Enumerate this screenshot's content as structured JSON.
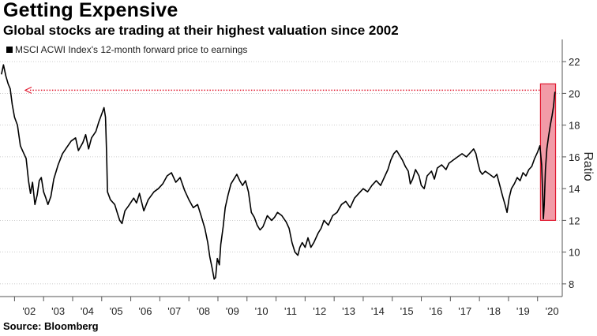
{
  "header": {
    "title": "Getting Expensive",
    "subtitle": "Global stocks are trading at their highest valuation since 2002"
  },
  "footer": {
    "source": "Source: Bloomberg"
  },
  "chart_data": {
    "type": "line",
    "title": "Getting Expensive",
    "subtitle": "Global stocks are trading at their highest valuation since 2002",
    "ylabel": "Ratio",
    "xlabel": "",
    "ylim": [
      7.2,
      23.2
    ],
    "xlim": [
      2001.5,
      2020.85
    ],
    "yticks": [
      8,
      10,
      12,
      14,
      16,
      18,
      20,
      22
    ],
    "xtick_labels": [
      "'02",
      "'03",
      "'04",
      "'05",
      "'06",
      "'07",
      "'08",
      "'09",
      "'10",
      "'11",
      "'12",
      "'13",
      "'14",
      "'15",
      "'16",
      "'17",
      "'18",
      "'19",
      "'20"
    ],
    "grid": "horizontal dotted",
    "legend_position": "top-left",
    "annotation": {
      "type": "highlight box and dotted arrow",
      "highlight_x": [
        2020.1,
        2020.62
      ],
      "highlight_y": [
        12,
        20.6
      ],
      "arrow_y": 20.2
    },
    "series": [
      {
        "name": "MSCI ACWI Index's 12-month forward price to earnings",
        "color": "#000000",
        "points": [
          [
            2001.55,
            21.2
          ],
          [
            2001.62,
            21.8
          ],
          [
            2001.7,
            21.1
          ],
          [
            2001.78,
            20.6
          ],
          [
            2001.85,
            20.3
          ],
          [
            2001.92,
            19.3
          ],
          [
            2002.0,
            18.5
          ],
          [
            2002.1,
            18.0
          ],
          [
            2002.2,
            16.7
          ],
          [
            2002.3,
            16.3
          ],
          [
            2002.4,
            15.9
          ],
          [
            2002.48,
            14.5
          ],
          [
            2002.55,
            13.7
          ],
          [
            2002.62,
            14.4
          ],
          [
            2002.7,
            13.0
          ],
          [
            2002.78,
            13.6
          ],
          [
            2002.85,
            14.5
          ],
          [
            2002.92,
            14.7
          ],
          [
            2003.0,
            13.8
          ],
          [
            2003.08,
            13.4
          ],
          [
            2003.15,
            13.0
          ],
          [
            2003.25,
            13.5
          ],
          [
            2003.35,
            14.6
          ],
          [
            2003.5,
            15.5
          ],
          [
            2003.65,
            16.2
          ],
          [
            2003.8,
            16.6
          ],
          [
            2003.95,
            17.0
          ],
          [
            2004.1,
            17.2
          ],
          [
            2004.2,
            16.4
          ],
          [
            2004.35,
            16.9
          ],
          [
            2004.45,
            17.4
          ],
          [
            2004.55,
            16.5
          ],
          [
            2004.65,
            17.2
          ],
          [
            2004.8,
            17.6
          ],
          [
            2004.9,
            18.2
          ],
          [
            2005.0,
            18.7
          ],
          [
            2005.08,
            19.1
          ],
          [
            2005.13,
            18.5
          ],
          [
            2005.17,
            16.2
          ],
          [
            2005.2,
            13.8
          ],
          [
            2005.3,
            13.3
          ],
          [
            2005.45,
            13.0
          ],
          [
            2005.55,
            12.4
          ],
          [
            2005.62,
            12.0
          ],
          [
            2005.7,
            11.8
          ],
          [
            2005.8,
            12.6
          ],
          [
            2005.92,
            12.9
          ],
          [
            2006.1,
            13.4
          ],
          [
            2006.2,
            13.1
          ],
          [
            2006.3,
            13.7
          ],
          [
            2006.45,
            12.6
          ],
          [
            2006.6,
            13.3
          ],
          [
            2006.8,
            13.8
          ],
          [
            2006.95,
            14.0
          ],
          [
            2007.1,
            14.3
          ],
          [
            2007.25,
            14.8
          ],
          [
            2007.4,
            15.0
          ],
          [
            2007.55,
            14.4
          ],
          [
            2007.7,
            14.7
          ],
          [
            2007.85,
            13.9
          ],
          [
            2008.0,
            13.3
          ],
          [
            2008.15,
            12.8
          ],
          [
            2008.3,
            13.0
          ],
          [
            2008.42,
            12.3
          ],
          [
            2008.55,
            11.5
          ],
          [
            2008.65,
            10.6
          ],
          [
            2008.72,
            9.7
          ],
          [
            2008.8,
            9.0
          ],
          [
            2008.87,
            8.3
          ],
          [
            2008.92,
            8.4
          ],
          [
            2008.98,
            9.6
          ],
          [
            2009.05,
            9.2
          ],
          [
            2009.1,
            10.5
          ],
          [
            2009.18,
            11.6
          ],
          [
            2009.25,
            12.8
          ],
          [
            2009.35,
            13.6
          ],
          [
            2009.45,
            14.3
          ],
          [
            2009.55,
            14.6
          ],
          [
            2009.65,
            14.9
          ],
          [
            2009.75,
            14.5
          ],
          [
            2009.85,
            14.2
          ],
          [
            2009.95,
            14.5
          ],
          [
            2010.05,
            13.8
          ],
          [
            2010.15,
            12.5
          ],
          [
            2010.25,
            12.2
          ],
          [
            2010.35,
            11.7
          ],
          [
            2010.45,
            11.4
          ],
          [
            2010.55,
            11.6
          ],
          [
            2010.7,
            12.3
          ],
          [
            2010.85,
            12.0
          ],
          [
            2010.95,
            12.2
          ],
          [
            2011.05,
            12.5
          ],
          [
            2011.2,
            12.3
          ],
          [
            2011.35,
            11.9
          ],
          [
            2011.45,
            11.5
          ],
          [
            2011.55,
            10.6
          ],
          [
            2011.65,
            10.0
          ],
          [
            2011.75,
            9.8
          ],
          [
            2011.82,
            10.3
          ],
          [
            2011.9,
            10.6
          ],
          [
            2012.0,
            10.3
          ],
          [
            2012.1,
            10.9
          ],
          [
            2012.2,
            10.3
          ],
          [
            2012.3,
            10.6
          ],
          [
            2012.45,
            11.2
          ],
          [
            2012.55,
            11.5
          ],
          [
            2012.65,
            12.0
          ],
          [
            2012.8,
            11.7
          ],
          [
            2012.95,
            12.3
          ],
          [
            2013.1,
            12.5
          ],
          [
            2013.25,
            13.0
          ],
          [
            2013.4,
            13.2
          ],
          [
            2013.55,
            12.8
          ],
          [
            2013.7,
            13.4
          ],
          [
            2013.85,
            13.7
          ],
          [
            2014.0,
            14.0
          ],
          [
            2014.15,
            13.8
          ],
          [
            2014.3,
            14.2
          ],
          [
            2014.45,
            14.5
          ],
          [
            2014.6,
            14.2
          ],
          [
            2014.75,
            14.8
          ],
          [
            2014.85,
            15.2
          ],
          [
            2014.95,
            15.8
          ],
          [
            2015.05,
            16.2
          ],
          [
            2015.15,
            16.4
          ],
          [
            2015.25,
            16.1
          ],
          [
            2015.35,
            15.8
          ],
          [
            2015.45,
            15.4
          ],
          [
            2015.55,
            15.1
          ],
          [
            2015.62,
            14.3
          ],
          [
            2015.7,
            14.6
          ],
          [
            2015.8,
            15.2
          ],
          [
            2015.92,
            14.8
          ],
          [
            2016.0,
            14.2
          ],
          [
            2016.1,
            14.0
          ],
          [
            2016.2,
            14.8
          ],
          [
            2016.35,
            15.1
          ],
          [
            2016.45,
            14.6
          ],
          [
            2016.55,
            15.3
          ],
          [
            2016.7,
            15.5
          ],
          [
            2016.85,
            15.2
          ],
          [
            2016.95,
            15.6
          ],
          [
            2017.1,
            15.8
          ],
          [
            2017.25,
            16.0
          ],
          [
            2017.4,
            16.2
          ],
          [
            2017.55,
            16.0
          ],
          [
            2017.7,
            16.3
          ],
          [
            2017.8,
            16.5
          ],
          [
            2017.88,
            16.2
          ],
          [
            2017.95,
            15.6
          ],
          [
            2018.02,
            15.1
          ],
          [
            2018.1,
            14.9
          ],
          [
            2018.2,
            15.1
          ],
          [
            2018.35,
            14.9
          ],
          [
            2018.5,
            14.7
          ],
          [
            2018.6,
            14.9
          ],
          [
            2018.7,
            14.2
          ],
          [
            2018.8,
            13.5
          ],
          [
            2018.88,
            13.0
          ],
          [
            2018.95,
            12.5
          ],
          [
            2019.02,
            13.4
          ],
          [
            2019.1,
            14.0
          ],
          [
            2019.2,
            14.3
          ],
          [
            2019.3,
            14.7
          ],
          [
            2019.4,
            14.5
          ],
          [
            2019.5,
            15.0
          ],
          [
            2019.6,
            14.8
          ],
          [
            2019.7,
            15.2
          ],
          [
            2019.8,
            15.4
          ],
          [
            2019.9,
            15.9
          ],
          [
            2020.0,
            16.3
          ],
          [
            2020.08,
            16.7
          ],
          [
            2020.14,
            15.5
          ],
          [
            2020.18,
            13.5
          ],
          [
            2020.2,
            12.1
          ],
          [
            2020.23,
            13.0
          ],
          [
            2020.27,
            15.2
          ],
          [
            2020.32,
            16.5
          ],
          [
            2020.38,
            17.3
          ],
          [
            2020.44,
            18.0
          ],
          [
            2020.5,
            18.6
          ],
          [
            2020.55,
            19.2
          ],
          [
            2020.58,
            19.8
          ],
          [
            2020.6,
            20.1
          ]
        ]
      }
    ]
  },
  "colors": {
    "line": "#000000",
    "highlight_fill": "#f29ba7",
    "highlight_stroke": "#e0192f",
    "arrow": "#e0192f",
    "grid": "#bbbbbb"
  }
}
